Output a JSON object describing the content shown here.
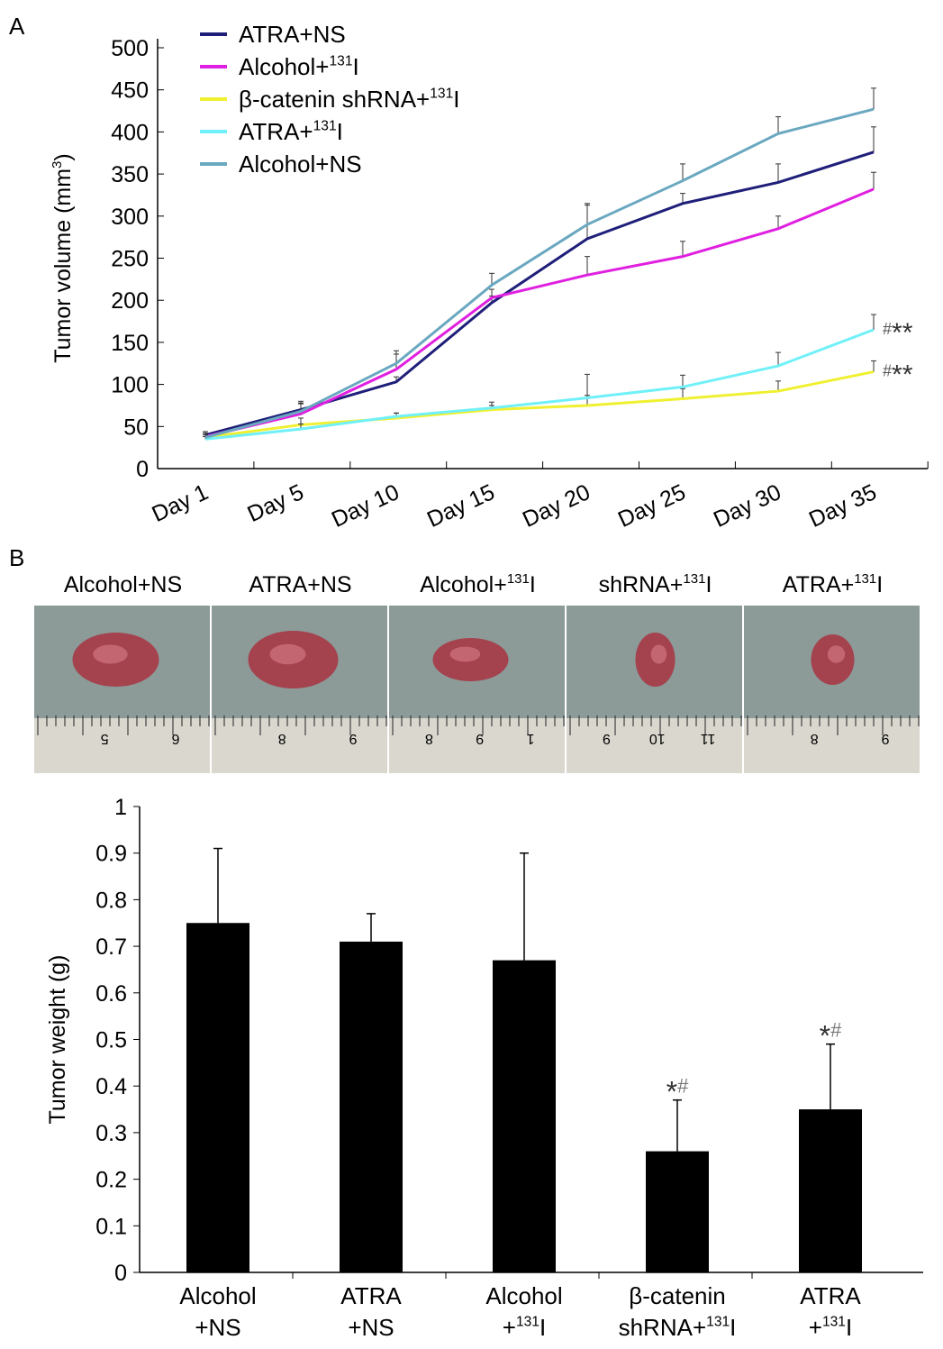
{
  "panel_labels": [
    "A",
    "B"
  ],
  "chart_data": [
    {
      "type": "line",
      "title": "",
      "ylabel": "Tumor volume (mm3)",
      "ylabel_main": "Tumor volume (mm",
      "ylabel_sup": "3",
      "ylabel_end": ")",
      "xlabel": "",
      "ylim": [
        0,
        500
      ],
      "yticks": [
        "0",
        "50",
        "100",
        "150",
        "200",
        "250",
        "300",
        "350",
        "400",
        "450",
        "500"
      ],
      "categories": [
        "Day 1",
        "Day 5",
        "Day 10",
        "Day 15",
        "Day 20",
        "Day 25",
        "Day 30",
        "Day 35"
      ],
      "legend_placement": "top-left",
      "series": [
        {
          "name": "ATRA+NS",
          "label": "ATRA+NS",
          "sup": "",
          "color": "#1f1f7a",
          "values": [
            40,
            70,
            103,
            197,
            273,
            315,
            340,
            376
          ],
          "err": [
            4,
            8,
            6,
            8,
            40,
            12,
            22,
            30
          ]
        },
        {
          "name": "Alcohol+131I",
          "label": "Alcohol+",
          "sup": "131",
          "tail": "I",
          "color": "#e020e0",
          "values": [
            38,
            65,
            118,
            203,
            230,
            252,
            285,
            332
          ],
          "err": [
            4,
            12,
            18,
            10,
            22,
            18,
            15,
            20
          ]
        },
        {
          "name": "β-catenin shRNA+131I",
          "label": "β-catenin shRNA+",
          "sup": "131",
          "tail": "I",
          "color": "#f0f030",
          "values": [
            37,
            52,
            60,
            70,
            75,
            83,
            92,
            115
          ],
          "err": [
            3,
            8,
            6,
            5,
            12,
            12,
            12,
            13
          ]
        },
        {
          "name": "ATRA+131I",
          "label": "ATRA+",
          "sup": "131",
          "tail": "I",
          "color": "#70f0f8",
          "values": [
            35,
            47,
            62,
            72,
            84,
            97,
            122,
            165
          ],
          "err": [
            3,
            6,
            4,
            7,
            28,
            14,
            16,
            18
          ]
        },
        {
          "name": "Alcohol+NS",
          "label": "Alcohol+NS",
          "sup": "",
          "color": "#6aa8c0",
          "values": [
            37,
            68,
            125,
            218,
            290,
            342,
            398,
            427
          ],
          "err": [
            5,
            12,
            15,
            14,
            25,
            20,
            20,
            25
          ]
        }
      ],
      "annotations": [
        {
          "series": "ATRA+131I",
          "hash": "#",
          "stars": "**"
        },
        {
          "series": "β-catenin shRNA+131I",
          "hash": "#",
          "stars": "**"
        }
      ]
    },
    {
      "type": "bar",
      "title": "",
      "ylabel": "Tumor weight (g)",
      "xlabel": "",
      "ylim": [
        0,
        1
      ],
      "yticks": [
        "0",
        "0.1",
        "0.2",
        "0.3",
        "0.4",
        "0.5",
        "0.6",
        "0.7",
        "0.8",
        "0.9",
        "1"
      ],
      "categories": [
        {
          "line1": "Alcohol",
          "line2": "+NS",
          "sup": "",
          "tail": ""
        },
        {
          "line1": "ATRA",
          "line2": "+NS",
          "sup": "",
          "tail": ""
        },
        {
          "line1": "Alcohol",
          "line2": "+",
          "sup": "131",
          "tail": "I"
        },
        {
          "line1": "β-catenin",
          "line2": "shRNA+",
          "sup": "131",
          "tail": "I"
        },
        {
          "line1": "ATRA",
          "line2": "+",
          "sup": "131",
          "tail": "I"
        }
      ],
      "values": [
        0.75,
        0.71,
        0.67,
        0.26,
        0.35
      ],
      "err": [
        0.16,
        0.06,
        0.23,
        0.11,
        0.14
      ],
      "bar_color": "#000000",
      "annotations": [
        "",
        "",
        "",
        "*#",
        "*#"
      ]
    }
  ],
  "photos": [
    {
      "label": "Alcohol+NS",
      "sup": "",
      "tail": "",
      "ruler": [
        "6",
        "5"
      ]
    },
    {
      "label": "ATRA+NS",
      "sup": "",
      "tail": "",
      "ruler": [
        "9",
        "8"
      ]
    },
    {
      "label": "Alcohol+",
      "sup": "131",
      "tail": "I",
      "ruler": [
        "1",
        "9",
        "8"
      ]
    },
    {
      "label": "shRNA+",
      "sup": "131",
      "tail": "I",
      "ruler": [
        "11",
        "10",
        "9"
      ]
    },
    {
      "label": "ATRA+",
      "sup": "131",
      "tail": "I",
      "ruler": [
        "9",
        "8"
      ]
    }
  ]
}
